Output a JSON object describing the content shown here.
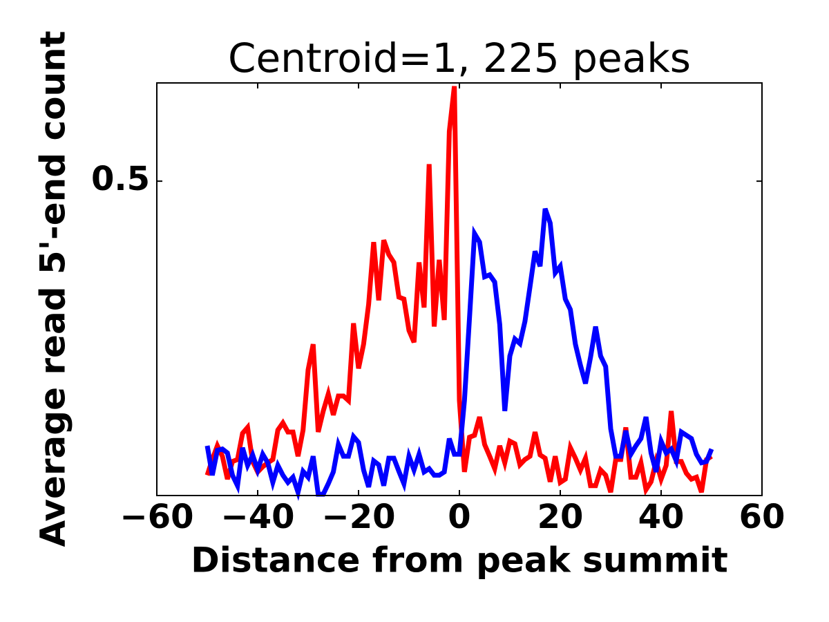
{
  "chart_data": {
    "type": "line",
    "title": "Centroid=1, 225 peaks",
    "x_label": "Distance from peak summit",
    "y_label": "Average read 5'-end count",
    "x": [
      -50,
      -49,
      -48,
      -47,
      -46,
      -45,
      -44,
      -43,
      -42,
      -41,
      -40,
      -39,
      -38,
      -37,
      -36,
      -35,
      -34,
      -33,
      -32,
      -31,
      -30,
      -29,
      -28,
      -27,
      -26,
      -25,
      -24,
      -23,
      -22,
      -21,
      -20,
      -19,
      -18,
      -17,
      -16,
      -15,
      -14,
      -13,
      -12,
      -11,
      -10,
      -9,
      -8,
      -7,
      -6,
      -5,
      -4,
      -3,
      -2,
      -1,
      0,
      1,
      2,
      3,
      4,
      5,
      6,
      7,
      8,
      9,
      10,
      11,
      12,
      13,
      14,
      15,
      16,
      17,
      18,
      19,
      20,
      21,
      22,
      23,
      24,
      25,
      26,
      27,
      28,
      29,
      30,
      31,
      32,
      33,
      34,
      35,
      36,
      37,
      38,
      39,
      40,
      41,
      42,
      43,
      44,
      45,
      46,
      47,
      48,
      49,
      50
    ],
    "series": [
      {
        "name": "red",
        "color": "#ff0000",
        "values": [
          0.051,
          0.075,
          0.096,
          0.08,
          0.045,
          0.072,
          0.075,
          0.115,
          0.124,
          0.072,
          0.056,
          0.064,
          0.07,
          0.075,
          0.12,
          0.131,
          0.117,
          0.117,
          0.08,
          0.12,
          0.212,
          0.251,
          0.117,
          0.149,
          0.175,
          0.143,
          0.172,
          0.172,
          0.165,
          0.283,
          0.214,
          0.251,
          0.312,
          0.407,
          0.318,
          0.41,
          0.388,
          0.376,
          0.323,
          0.32,
          0.272,
          0.254,
          0.376,
          0.307,
          0.526,
          0.278,
          0.38,
          0.288,
          0.576,
          0.645,
          0.165,
          0.056,
          0.109,
          0.112,
          0.14,
          0.098,
          0.08,
          0.061,
          0.096,
          0.07,
          0.103,
          0.099,
          0.067,
          0.075,
          0.08,
          0.117,
          0.082,
          0.077,
          0.041,
          0.08,
          0.04,
          0.045,
          0.093,
          0.077,
          0.059,
          0.077,
          0.035,
          0.035,
          0.059,
          0.051,
          0.025,
          0.075,
          0.075,
          0.124,
          0.048,
          0.048,
          0.07,
          0.029,
          0.041,
          0.072,
          0.045,
          0.066,
          0.149,
          0.072,
          0.072,
          0.054,
          0.045,
          0.048,
          0.025,
          0.075,
          0.08
        ]
      },
      {
        "name": "blue",
        "color": "#0000ff",
        "values": [
          0.096,
          0.051,
          0.089,
          0.091,
          0.085,
          0.051,
          0.035,
          0.093,
          0.066,
          0.082,
          0.059,
          0.083,
          0.07,
          0.04,
          0.066,
          0.051,
          0.04,
          0.048,
          0.025,
          0.057,
          0.048,
          0.08,
          0.022,
          0.022,
          0.038,
          0.056,
          0.098,
          0.08,
          0.08,
          0.11,
          0.101,
          0.059,
          0.033,
          0.073,
          0.067,
          0.035,
          0.077,
          0.077,
          0.057,
          0.038,
          0.08,
          0.059,
          0.083,
          0.056,
          0.061,
          0.051,
          0.051,
          0.056,
          0.107,
          0.083,
          0.083,
          0.165,
          0.291,
          0.42,
          0.407,
          0.354,
          0.357,
          0.346,
          0.281,
          0.149,
          0.233,
          0.259,
          0.252,
          0.286,
          0.339,
          0.393,
          0.37,
          0.458,
          0.436,
          0.36,
          0.37,
          0.32,
          0.304,
          0.251,
          0.219,
          0.191,
          0.231,
          0.278,
          0.233,
          0.217,
          0.122,
          0.08,
          0.08,
          0.119,
          0.083,
          0.096,
          0.107,
          0.14,
          0.085,
          0.056,
          0.103,
          0.085,
          0.091,
          0.073,
          0.117,
          0.112,
          0.107,
          0.083,
          0.07,
          0.072,
          0.091
        ]
      }
    ],
    "xlim": [
      -60,
      60
    ],
    "xticks": [
      {
        "value": -60,
        "label": "−60"
      },
      {
        "value": -40,
        "label": "−40"
      },
      {
        "value": -20,
        "label": "−20"
      },
      0,
      20,
      40,
      60
    ],
    "ylim": [
      0.02,
      0.65
    ],
    "yticks": [
      0.5
    ]
  }
}
